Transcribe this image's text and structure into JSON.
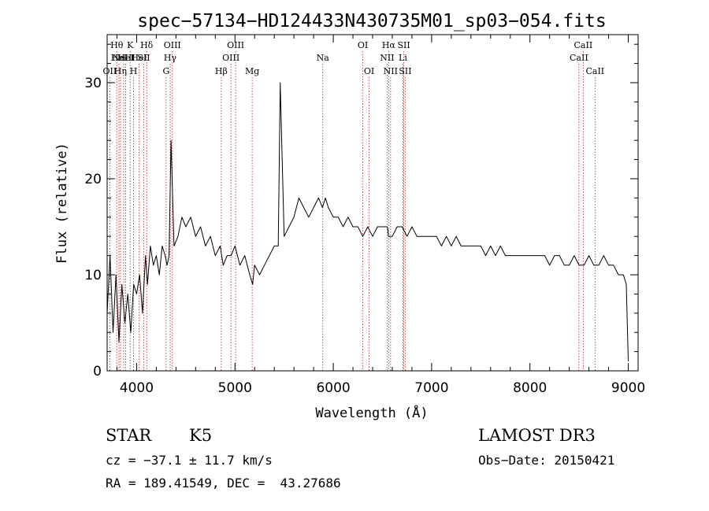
{
  "chart_data": {
    "type": "line",
    "title": "spec−57134−HD124433N430735M01_sp03−054.fits",
    "xlabel": "Wavelength (Å)",
    "ylabel": "Flux (relative)",
    "xlim": [
      3700,
      9100
    ],
    "ylim": [
      0,
      35
    ],
    "xticks": [
      4000,
      5000,
      6000,
      7000,
      8000,
      9000
    ],
    "yticks": [
      0,
      10,
      20,
      30
    ],
    "grid": false,
    "series": [
      {
        "color": "#000000",
        "x": [
          3700,
          3730,
          3760,
          3790,
          3820,
          3850,
          3880,
          3910,
          3940,
          3970,
          4000,
          4030,
          4060,
          4090,
          4110,
          4140,
          4170,
          4200,
          4230,
          4260,
          4290,
          4310,
          4330,
          4350,
          4380,
          4420,
          4460,
          4500,
          4550,
          4600,
          4650,
          4700,
          4750,
          4800,
          4850,
          4880,
          4920,
          4960,
          5000,
          5050,
          5100,
          5150,
          5180,
          5200,
          5250,
          5300,
          5350,
          5400,
          5440,
          5460,
          5500,
          5550,
          5600,
          5650,
          5700,
          5750,
          5800,
          5850,
          5890,
          5920,
          5950,
          6000,
          6050,
          6100,
          6150,
          6200,
          6250,
          6300,
          6350,
          6400,
          6450,
          6500,
          6550,
          6563,
          6600,
          6650,
          6700,
          6750,
          6800,
          6850,
          6900,
          6950,
          7000,
          7050,
          7100,
          7150,
          7200,
          7250,
          7300,
          7350,
          7400,
          7450,
          7500,
          7550,
          7600,
          7650,
          7700,
          7750,
          7800,
          7850,
          7900,
          7950,
          8000,
          8050,
          8100,
          8150,
          8200,
          8250,
          8300,
          8350,
          8400,
          8450,
          8500,
          8550,
          8600,
          8650,
          8700,
          8750,
          8800,
          8850,
          8900,
          8950,
          8980,
          9000
        ],
        "y": [
          6,
          12,
          4,
          10,
          3,
          9,
          5,
          8,
          4,
          9,
          8,
          10,
          6,
          12,
          9,
          13,
          11,
          12,
          10,
          13,
          12,
          11,
          12,
          24,
          13,
          14,
          16,
          15,
          16,
          14,
          15,
          13,
          14,
          12,
          13,
          11,
          12,
          12,
          13,
          11,
          12,
          10,
          9,
          11,
          10,
          11,
          12,
          13,
          13,
          30,
          14,
          15,
          16,
          18,
          17,
          16,
          17,
          18,
          17,
          18,
          17,
          16,
          16,
          15,
          16,
          15,
          15,
          14,
          15,
          14,
          15,
          15,
          15,
          14,
          14,
          15,
          15,
          14,
          15,
          14,
          14,
          14,
          14,
          14,
          13,
          14,
          13,
          14,
          13,
          13,
          13,
          13,
          13,
          12,
          13,
          12,
          13,
          12,
          12,
          12,
          12,
          12,
          12,
          12,
          12,
          12,
          11,
          12,
          12,
          11,
          11,
          12,
          11,
          11,
          12,
          11,
          11,
          12,
          11,
          11,
          10,
          10,
          9,
          1
        ]
      }
    ],
    "lines": [
      {
        "x": 3727,
        "label": "OII",
        "row": 2
      },
      {
        "x": 3798,
        "label": "Hθ",
        "row": 0
      },
      {
        "x": 3820,
        "label": "HeI",
        "row": 1
      },
      {
        "x": 3835,
        "label": "Hη",
        "row": 2
      },
      {
        "x": 3869,
        "label": "NeIII",
        "row": 1
      },
      {
        "x": 3889,
        "label": "HeI",
        "row": 1
      },
      {
        "x": 3934,
        "label": "K",
        "row": 0
      },
      {
        "x": 3969,
        "label": "H",
        "row": 2
      },
      {
        "x": 4026,
        "label": "HeI",
        "row": 1
      },
      {
        "x": 4072,
        "label": "SII",
        "row": 1
      },
      {
        "x": 4102,
        "label": "Hδ",
        "row": 0
      },
      {
        "x": 4300,
        "label": "G",
        "row": 2
      },
      {
        "x": 4341,
        "label": "Hγ",
        "row": 1
      },
      {
        "x": 4363,
        "label": "OIII",
        "row": 0
      },
      {
        "x": 4861,
        "label": "Hβ",
        "row": 2
      },
      {
        "x": 4959,
        "label": "OIII",
        "row": 1
      },
      {
        "x": 5007,
        "label": "OIII",
        "row": 0
      },
      {
        "x": 5175,
        "label": "Mg",
        "row": 2
      },
      {
        "x": 5893,
        "label": "Na",
        "row": 1
      },
      {
        "x": 6300,
        "label": "OI",
        "row": 0
      },
      {
        "x": 6364,
        "label": "OI",
        "row": 2
      },
      {
        "x": 6548,
        "label": "NII",
        "row": 1
      },
      {
        "x": 6563,
        "label": "Hα",
        "row": 0
      },
      {
        "x": 6583,
        "label": "NII",
        "row": 2
      },
      {
        "x": 6708,
        "label": "Li",
        "row": 1
      },
      {
        "x": 6717,
        "label": "SII",
        "row": 0
      },
      {
        "x": 6731,
        "label": "SII",
        "row": 2
      },
      {
        "x": 8498,
        "label": "CaII",
        "row": 1
      },
      {
        "x": 8542,
        "label": "CaII",
        "row": 0
      },
      {
        "x": 8662,
        "label": "CaII",
        "row": 2
      }
    ]
  },
  "info": {
    "class": "STAR",
    "subclass": "K5",
    "survey": "LAMOST DR3",
    "cz": "cz = −37.1 ± 11.7 km/s",
    "obs_date": "Obs−Date: 20150421",
    "coords": "RA = 189.41549, DEC =  43.27686"
  }
}
